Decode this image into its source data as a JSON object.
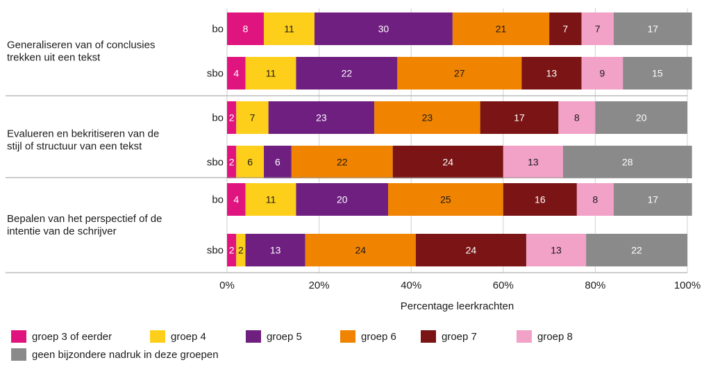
{
  "chart_data": {
    "type": "bar",
    "orientation": "horizontal",
    "stacked": true,
    "percent": true,
    "xlabel": "Percentage leerkrachten",
    "xlim": [
      0,
      100
    ],
    "xticks": [
      "0%",
      "20%",
      "40%",
      "60%",
      "80%",
      "100%"
    ],
    "grid": true,
    "legend_position": "bottom",
    "groups": [
      {
        "label": "Generaliseren van of conclusies trekken uit een tekst",
        "label_lines": [
          "Generaliseren van of conclusies",
          "trekken uit een tekst"
        ],
        "rows": [
          {
            "label": "bo",
            "values": [
              8,
              11,
              30,
              21,
              7,
              7,
              17
            ]
          },
          {
            "label": "sbo",
            "values": [
              4,
              11,
              22,
              27,
              13,
              9,
              15
            ]
          }
        ]
      },
      {
        "label": "Evalueren en bekritiseren van de stijl of structuur van een tekst",
        "label_lines": [
          "Evalueren en bekritiseren van de",
          "stijl of structuur van een tekst"
        ],
        "rows": [
          {
            "label": "bo",
            "values": [
              2,
              7,
              23,
              23,
              17,
              8,
              20
            ]
          },
          {
            "label": "sbo",
            "values": [
              2,
              6,
              6,
              22,
              24,
              13,
              28
            ]
          }
        ]
      },
      {
        "label": "Bepalen van het perspectief of de intentie van de schrijver",
        "label_lines": [
          "Bepalen van het perspectief of de",
          "intentie van de schrijver"
        ],
        "rows": [
          {
            "label": "bo",
            "values": [
              4,
              11,
              20,
              25,
              16,
              8,
              17
            ]
          },
          {
            "label": "sbo",
            "values": [
              2,
              2,
              13,
              24,
              24,
              13,
              22
            ]
          }
        ]
      }
    ],
    "series": [
      {
        "name": "groep 3 of eerder",
        "color": "#e0147f",
        "text_color": "#ffffff"
      },
      {
        "name": "groep 4",
        "color": "#fdcf1b",
        "text_color": "#1a1a1a"
      },
      {
        "name": "groep 5",
        "color": "#6e1f80",
        "text_color": "#ffffff"
      },
      {
        "name": "groep 6",
        "color": "#f08300",
        "text_color": "#1a1a1a"
      },
      {
        "name": "groep 7",
        "color": "#7b1414",
        "text_color": "#ffffff"
      },
      {
        "name": "groep 8",
        "color": "#f2a1c7",
        "text_color": "#1a1a1a"
      },
      {
        "name": "geen bijzondere nadruk in deze groepen",
        "color": "#8a8a8a",
        "text_color": "#ffffff"
      }
    ]
  }
}
